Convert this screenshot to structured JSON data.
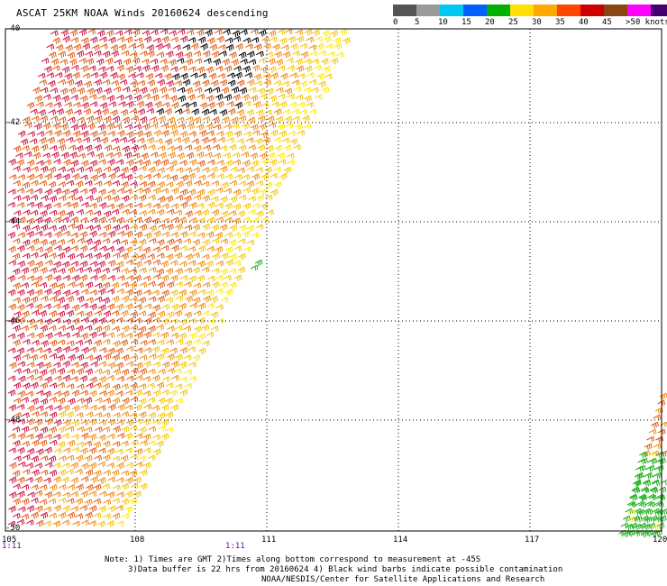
{
  "title": "ASCAT 25KM NOAA Winds 20160624 descending",
  "legend": {
    "labels": [
      "0",
      "5",
      "10",
      "15",
      "20",
      "25",
      "30",
      "35",
      "40",
      "45",
      ">50 knots"
    ],
    "colors": [
      "#555555",
      "#9a9a9a",
      "#00c8f0",
      "#0060ff",
      "#00b000",
      "#ffe000",
      "#ffa800",
      "#ff4500",
      "#cc0000",
      "#8b4513",
      "#ff00ff",
      "#440070"
    ]
  },
  "map": {
    "lon_ticks": [
      "105",
      "108",
      "111",
      "114",
      "117",
      "120"
    ],
    "lat_ticks": [
      "-40",
      "-42",
      "-44",
      "-46",
      "-48",
      "-50"
    ],
    "pass_times": [
      "1:11",
      "1:11"
    ]
  },
  "notes": {
    "line1": "Note: 1) Times are GMT 2)Times along bottom correspond to measurement at -45S",
    "line2": "3)Data buffer is 22 hrs from 20160624 4) Black wind barbs indicate possible contamination",
    "line3": "NOAA/NESDIS/Center for Satellite Applications and Research"
  },
  "barb_colors": {
    "high": "#cc1040",
    "mid_high": "#e05a10",
    "mid": "#f08a10",
    "low": "#f5c400",
    "very_low": "#ffe800",
    "calm": "#20b020",
    "contaminated": "#000000"
  }
}
